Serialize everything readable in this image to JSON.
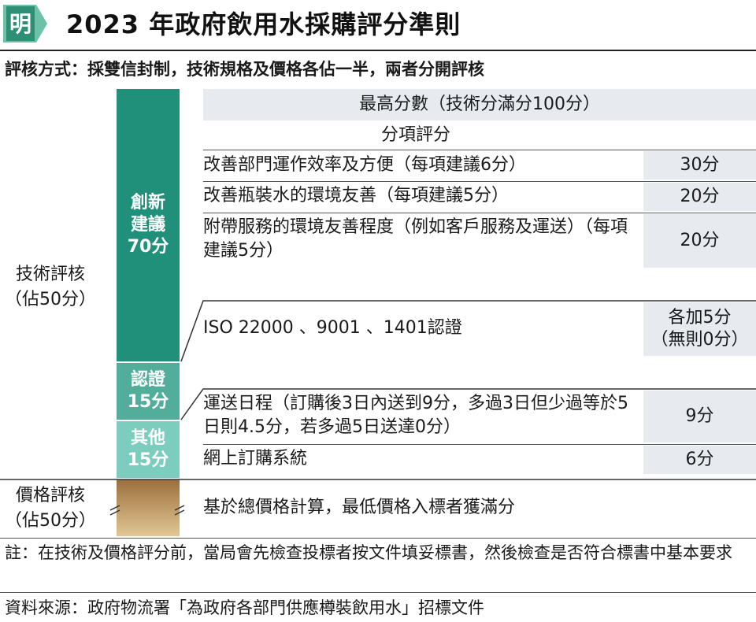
{
  "header": {
    "title": "2023 年政府飲用水採購評分準則",
    "logo_text": "明",
    "method": "評核方式：採雙信封制，技術規格及價格各佔一半，兩者分開評核"
  },
  "left_labels": {
    "technical": [
      "技術評核",
      "（佔50分）"
    ],
    "price": [
      "價格評核",
      "（佔50分）"
    ]
  },
  "bars": {
    "innovation": [
      "創新",
      "建議",
      "70分"
    ],
    "certification": [
      "認證",
      "15分"
    ],
    "other": [
      "其他",
      "15分"
    ]
  },
  "table": {
    "max_score_heading": "最高分數（技術分滿分100分）",
    "sub_heading": "分項評分",
    "innovation_rows": [
      {
        "text": "改善部門運作效率及方便（每項建議6分）",
        "score": "30分"
      },
      {
        "text": "改善瓶裝水的環境友善（每項建議5分）",
        "score": "20分"
      },
      {
        "text": "附帶服務的環境友善程度（例如客戶服務及運送）（每項建議5分）",
        "score": "20分"
      }
    ],
    "certification_row": {
      "text": "ISO 22000 、9001 、1401認證",
      "score_line1": "各加5分",
      "score_line2": "（無則0分）"
    },
    "other_rows": [
      {
        "text": "運送日程（訂購後3日內送到9分，多過3日但少過等於5日則4.5分，若多過5日送達0分）",
        "score": "9分"
      },
      {
        "text": "網上訂購系統",
        "score": "6分"
      }
    ],
    "price_row": "基於總價格計算，最低價格入標者獲滿分"
  },
  "notes": {
    "note": "註：在技術及價格評分前，當局會先檢查投標者按文件填妥標書，然後檢查是否符合標書中基本要求",
    "source": "資料來源：政府物流署「為政府各部門供應樽裝飲用水」招標文件"
  },
  "colors": {
    "innovation_bar": "#21907a",
    "certification_bar": "#52ad9a",
    "other_bar": "#7ccdbd",
    "score_cell": "#e7ebef",
    "logo": "#6cc1a7"
  }
}
